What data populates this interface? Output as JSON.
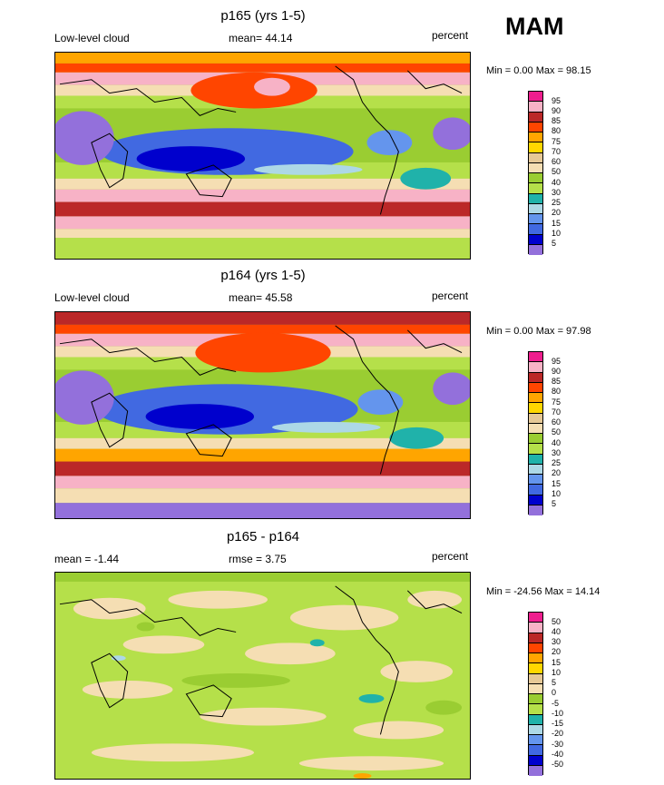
{
  "season": "MAM",
  "panels": [
    {
      "title": "p165 (yrs 1-5)",
      "left_label": "Low-level cloud",
      "center_label": "mean=  44.14",
      "right_label": "percent",
      "minmax": "Min =   0.00 Max =  98.15",
      "kind": "abs",
      "colorbar_labels": [
        "95",
        "90",
        "85",
        "80",
        "75",
        "70",
        "60",
        "50",
        "40",
        "30",
        "25",
        "20",
        "15",
        "10",
        "5"
      ]
    },
    {
      "title": "p164 (yrs 1-5)",
      "left_label": "Low-level cloud",
      "center_label": "mean=  45.58",
      "right_label": "percent",
      "minmax": "Min =   0.00 Max =  97.98",
      "kind": "abs",
      "colorbar_labels": [
        "95",
        "90",
        "85",
        "80",
        "75",
        "70",
        "60",
        "50",
        "40",
        "30",
        "25",
        "20",
        "15",
        "10",
        "5"
      ]
    },
    {
      "title": "p165 - p164",
      "left_label": "mean =  -1.44",
      "center_label": "rmse =    3.75",
      "right_label": "percent",
      "minmax": "Min = -24.56 Max =  14.14",
      "kind": "diff",
      "colorbar_labels": [
        "50",
        "40",
        "30",
        "20",
        "15",
        "10",
        "5",
        "0",
        "-5",
        "-10",
        "-15",
        "-20",
        "-30",
        "-40",
        "-50"
      ]
    }
  ],
  "palettes": {
    "abs": [
      "#ee1e8e",
      "#f7b2c6",
      "#bb2828",
      "#ff4500",
      "#ffa500",
      "#ffd700",
      "#e6c896",
      "#f5deb3",
      "#9acd32",
      "#b5e04a",
      "#20b2aa",
      "#add8e6",
      "#6495ed",
      "#4169e1",
      "#0000cd",
      "#9370db"
    ],
    "diff": [
      "#ee1e8e",
      "#f7b2c6",
      "#bb2828",
      "#ff4500",
      "#ffa500",
      "#ffd700",
      "#e6c896",
      "#f5deb3",
      "#9acd32",
      "#b5e04a",
      "#20b2aa",
      "#add8e6",
      "#6495ed",
      "#4169e1",
      "#0000cd",
      "#9370db"
    ]
  }
}
